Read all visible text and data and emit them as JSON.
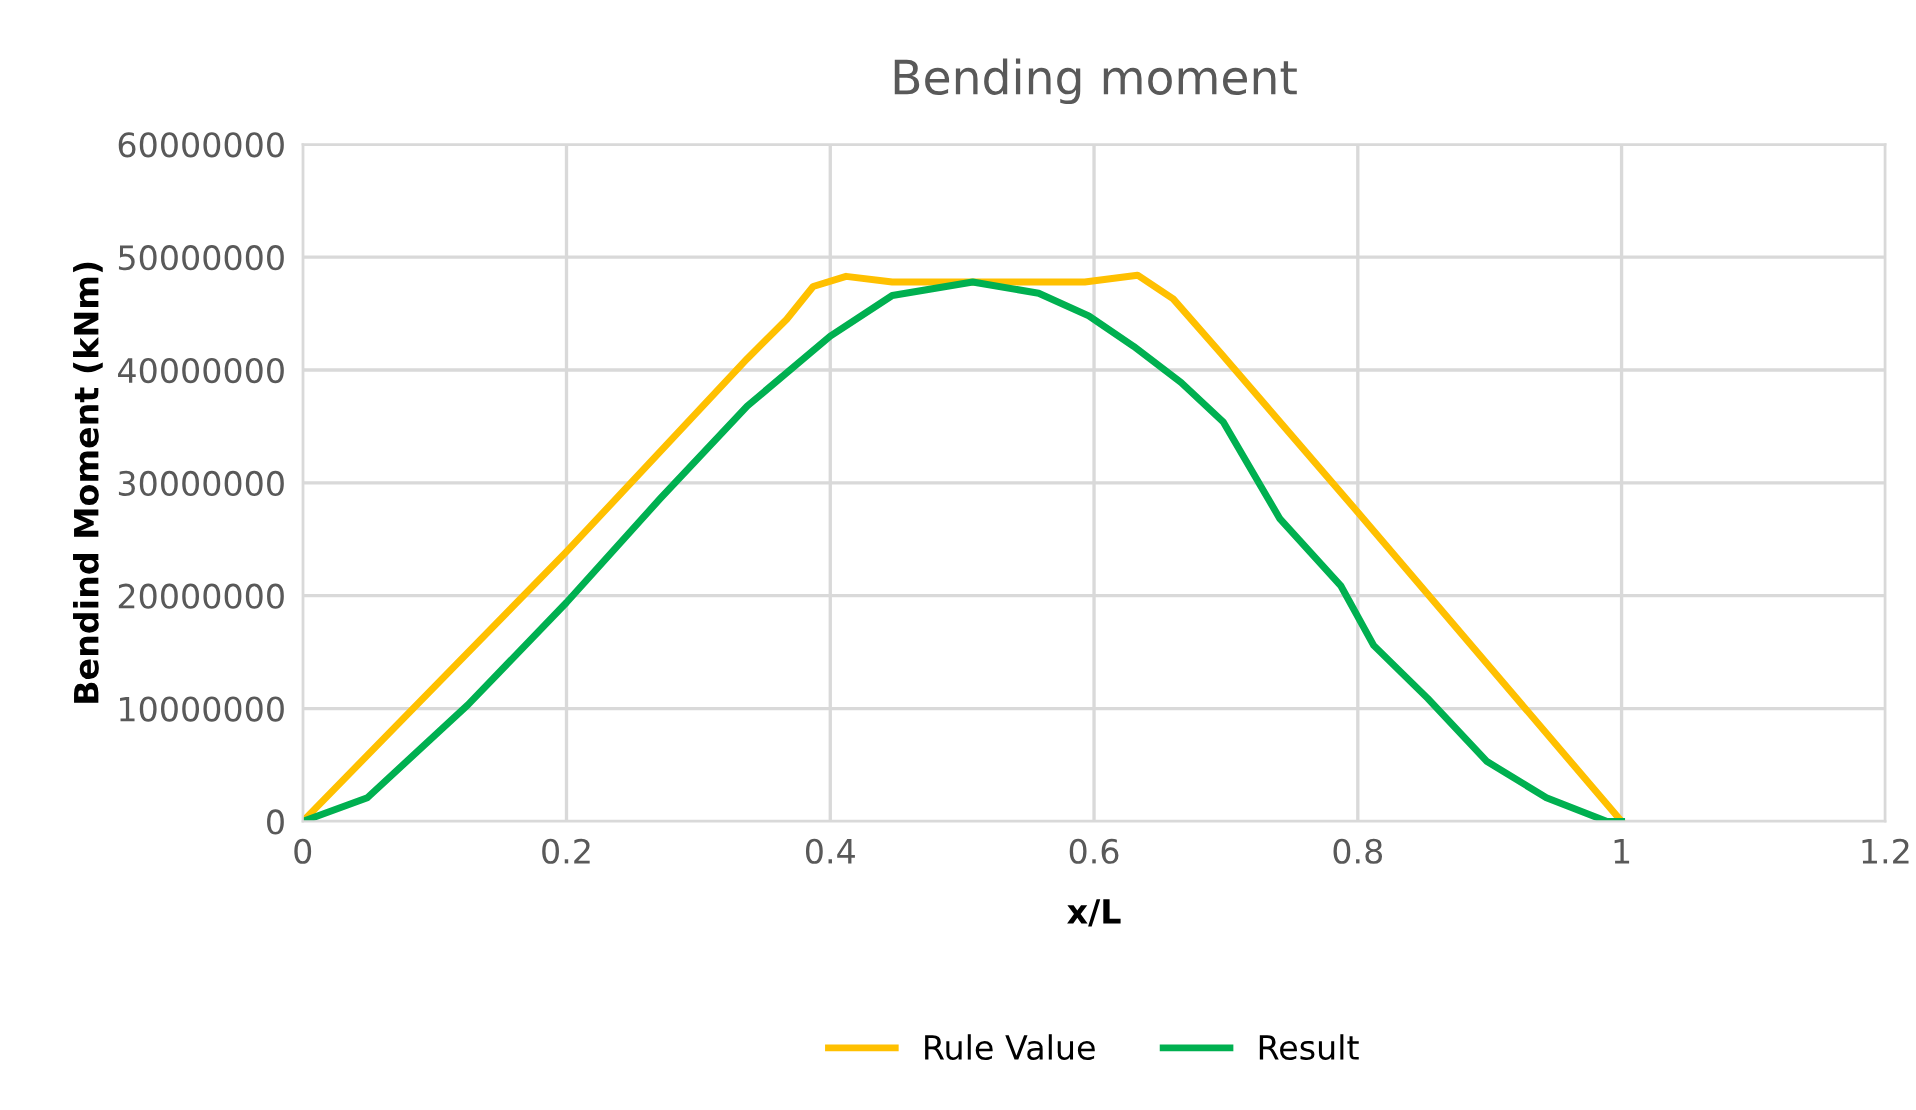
{
  "chart_data": {
    "type": "line",
    "title": "Bending moment",
    "xlabel": "x/L",
    "ylabel": "Bendind Moment (kNm)",
    "xlim": [
      0,
      1.2
    ],
    "xticks": [
      0,
      0.2,
      0.4,
      0.6,
      0.8,
      1,
      1.2
    ],
    "ylim": [
      0,
      60000000
    ],
    "yticks": [
      0,
      10000000,
      20000000,
      30000000,
      40000000,
      50000000,
      60000000
    ],
    "grid": true,
    "legend": "bottom",
    "marker": "none",
    "line_style": "solid",
    "series": [
      {
        "name": "Rule Value",
        "color": "#ffc000",
        "x": [
          0,
          0.2,
          0.337,
          0.367,
          0.387,
          0.412,
          0.447,
          0.5,
          0.593,
          0.633,
          0.66,
          0.696,
          0.8,
          1.0
        ],
        "values": [
          0,
          23900000,
          41000000,
          44500000,
          47400000,
          48300000,
          47800000,
          47800000,
          47800000,
          48400000,
          46300000,
          41500000,
          27400000,
          0
        ]
      },
      {
        "name": "Result",
        "color": "#00b050",
        "x": [
          0,
          0.049,
          0.125,
          0.2,
          0.271,
          0.337,
          0.4,
          0.447,
          0.508,
          0.558,
          0.596,
          0.63,
          0.666,
          0.698,
          0.741,
          0.787,
          0.812,
          0.853,
          0.898,
          0.943,
          0.989,
          1.0
        ],
        "values": [
          0,
          2100000,
          10300000,
          19400000,
          28600000,
          36800000,
          43000000,
          46600000,
          47800000,
          46800000,
          44800000,
          42100000,
          38900000,
          35400000,
          26800000,
          20900000,
          15600000,
          10900000,
          5300000,
          2100000,
          0,
          0
        ]
      }
    ]
  }
}
